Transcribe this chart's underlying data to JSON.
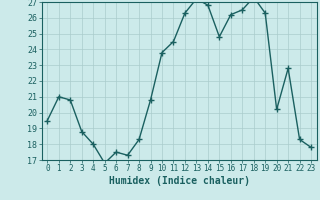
{
  "x": [
    0,
    1,
    2,
    3,
    4,
    5,
    6,
    7,
    8,
    9,
    10,
    11,
    12,
    13,
    14,
    15,
    16,
    17,
    18,
    19,
    20,
    21,
    22,
    23
  ],
  "y": [
    19.5,
    21.0,
    20.8,
    18.8,
    18.0,
    16.8,
    17.5,
    17.3,
    18.3,
    20.8,
    23.8,
    24.5,
    26.3,
    27.2,
    26.8,
    24.8,
    26.2,
    26.5,
    27.3,
    26.3,
    20.2,
    22.8,
    18.3,
    17.8
  ],
  "xlabel": "Humidex (Indice chaleur)",
  "ylabel": "",
  "ylim": [
    17,
    27
  ],
  "xlim": [
    -0.5,
    23.5
  ],
  "yticks": [
    17,
    18,
    19,
    20,
    21,
    22,
    23,
    24,
    25,
    26,
    27
  ],
  "xticks": [
    0,
    1,
    2,
    3,
    4,
    5,
    6,
    7,
    8,
    9,
    10,
    11,
    12,
    13,
    14,
    15,
    16,
    17,
    18,
    19,
    20,
    21,
    22,
    23
  ],
  "line_color": "#1a6060",
  "marker": "+",
  "markersize": 4,
  "bg_color": "#cceaea",
  "grid_color": "#aacccc",
  "axis_color": "#1a6060",
  "tick_color": "#1a6060",
  "xlabel_color": "#1a6060",
  "tick_fontsize": 5.5,
  "xlabel_fontsize": 7,
  "linewidth": 1.0
}
